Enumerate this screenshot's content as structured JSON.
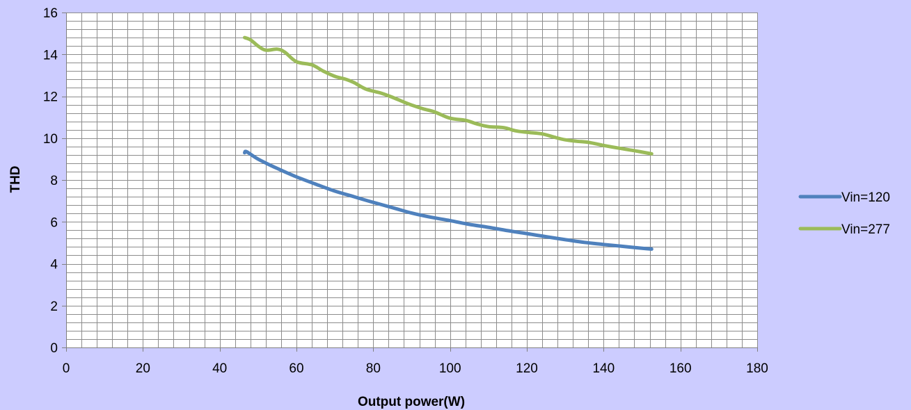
{
  "chart_data": {
    "type": "line",
    "xlabel": "Output power(W)",
    "ylabel": "THD",
    "xlim": [
      0,
      180
    ],
    "ylim": [
      0,
      16
    ],
    "xticks": [
      0,
      20,
      40,
      60,
      80,
      100,
      120,
      140,
      160,
      180
    ],
    "yticks": [
      0,
      2,
      4,
      6,
      8,
      10,
      12,
      14,
      16
    ],
    "x_minor_step": 4,
    "y_minor_step": 0.4,
    "grid": true,
    "legend_position": "right",
    "background_color": "#ccccff",
    "plot_background_color": "#ffffff",
    "series": [
      {
        "name": "Vin=120",
        "color": "#4f81bd",
        "x": [
          46.5,
          47,
          50,
          55,
          60,
          65,
          70,
          75,
          80,
          85,
          90,
          95,
          100,
          105,
          110,
          115,
          120,
          125,
          130,
          135,
          140,
          145,
          150,
          152.5
        ],
        "y": [
          9.3,
          9.35,
          9.0,
          8.55,
          8.15,
          7.8,
          7.47,
          7.2,
          6.93,
          6.68,
          6.42,
          6.22,
          6.06,
          5.88,
          5.74,
          5.58,
          5.44,
          5.29,
          5.15,
          5.02,
          4.92,
          4.83,
          4.74,
          4.7
        ]
      },
      {
        "name": "Vin=277",
        "color": "#9bbb59",
        "x": [
          46.5,
          48,
          50,
          52,
          55,
          57,
          60,
          64,
          67,
          70,
          73,
          75,
          78,
          82,
          85,
          88,
          90,
          93,
          96,
          100,
          104,
          107,
          110,
          114,
          117,
          120,
          124,
          127,
          130,
          133,
          136,
          140,
          144,
          148,
          152.5
        ],
        "y": [
          14.8,
          14.7,
          14.4,
          14.2,
          14.25,
          14.1,
          13.65,
          13.5,
          13.2,
          12.95,
          12.8,
          12.65,
          12.35,
          12.15,
          11.95,
          11.72,
          11.58,
          11.4,
          11.25,
          10.95,
          10.85,
          10.68,
          10.55,
          10.5,
          10.35,
          10.28,
          10.2,
          10.05,
          9.92,
          9.85,
          9.8,
          9.65,
          9.52,
          9.4,
          9.25
        ]
      }
    ]
  }
}
